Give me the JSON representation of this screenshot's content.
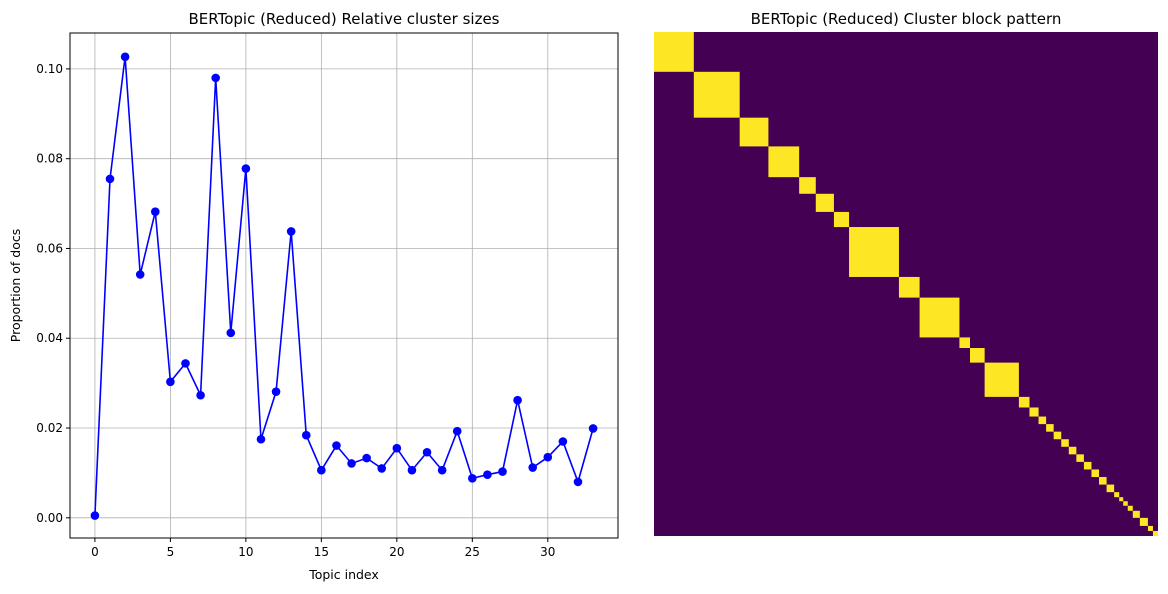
{
  "chart_data": [
    {
      "type": "line",
      "title": "BERTopic (Reduced) Relative cluster sizes",
      "xlabel": "Topic index",
      "ylabel": "Proportion of docs",
      "xlim": [
        -1.65,
        34.65
      ],
      "ylim": [
        -0.0045,
        0.108
      ],
      "xticks": [
        0,
        5,
        10,
        15,
        20,
        25,
        30
      ],
      "yticks": [
        0.0,
        0.02,
        0.04,
        0.06,
        0.08,
        0.1
      ],
      "ytick_labels": [
        "0.00",
        "0.02",
        "0.04",
        "0.06",
        "0.08",
        "0.10"
      ],
      "grid": true,
      "color": "#0000ff",
      "x": [
        0,
        1,
        2,
        3,
        4,
        5,
        6,
        7,
        8,
        9,
        10,
        11,
        12,
        13,
        14,
        15,
        16,
        17,
        18,
        19,
        20,
        21,
        22,
        23,
        24,
        25,
        26,
        27,
        28,
        29,
        30,
        31,
        32,
        33
      ],
      "y": [
        0.0005,
        0.0755,
        0.1027,
        0.0542,
        0.0682,
        0.0303,
        0.0344,
        0.0273,
        0.098,
        0.0412,
        0.0778,
        0.0175,
        0.0281,
        0.0638,
        0.0184,
        0.0106,
        0.0161,
        0.0121,
        0.0133,
        0.011,
        0.0155,
        0.0106,
        0.0146,
        0.0106,
        0.0193,
        0.0088,
        0.0096,
        0.0103,
        0.0262,
        0.0112,
        0.0135,
        0.017,
        0.008,
        0.0199
      ]
    },
    {
      "type": "heatmap",
      "title": "BERTopic (Reduced) Cluster block pattern",
      "colors": {
        "background": "#440154",
        "block": "#fde725"
      },
      "axes_visible": false,
      "n_rows": 1000,
      "block_bounds": [
        0,
        79,
        170,
        227,
        288,
        321,
        357,
        387,
        486,
        527,
        606,
        627,
        656,
        724,
        745,
        763,
        778,
        793,
        808,
        823,
        838,
        853,
        868,
        883,
        898,
        913,
        923,
        931,
        940,
        950,
        964,
        980,
        990,
        1000
      ]
    }
  ]
}
